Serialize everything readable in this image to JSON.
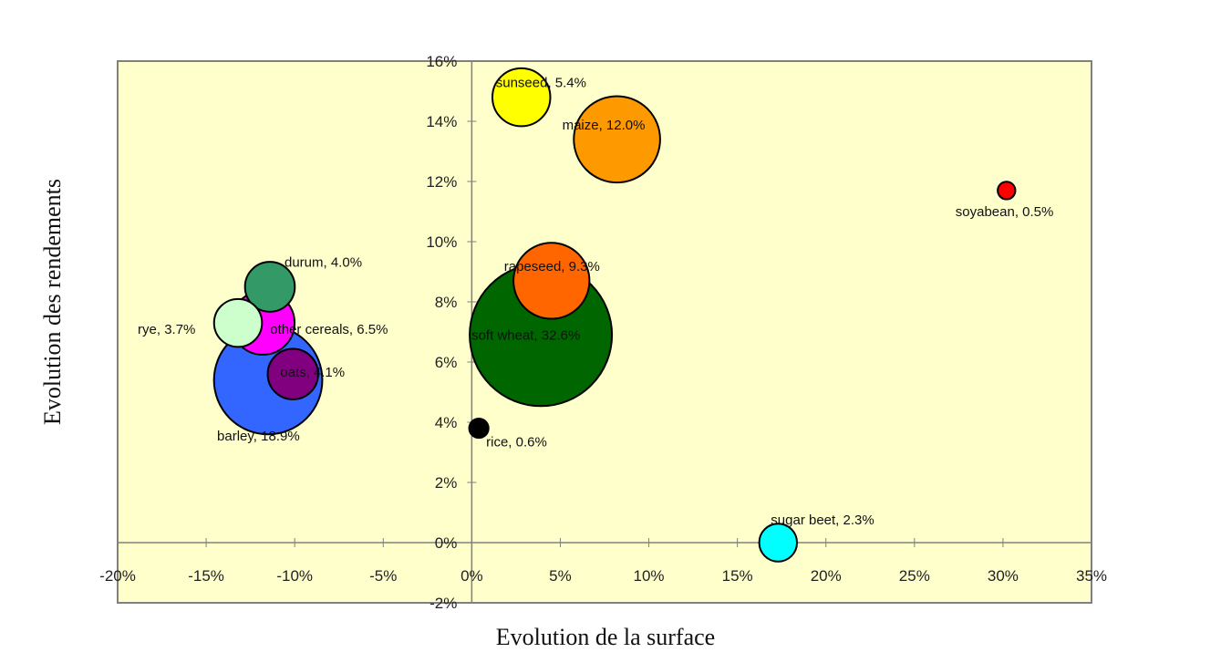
{
  "chart_data": {
    "type": "bubble",
    "xlabel": "Evolution de la surface",
    "ylabel": "Evolution des rendements",
    "xlim": [
      -20,
      35
    ],
    "ylim": [
      -2,
      16
    ],
    "x_ticks": [
      -20,
      -15,
      -10,
      -5,
      0,
      5,
      10,
      15,
      20,
      25,
      30,
      35
    ],
    "y_ticks": [
      -2,
      0,
      2,
      4,
      6,
      8,
      10,
      12,
      14,
      16
    ],
    "plot_background": "#FFFFCC",
    "grid": false,
    "series": [
      {
        "name": "soft wheat",
        "share": "32.6%",
        "label": "soft wheat, 32.6%",
        "x": 3.9,
        "y": 6.9,
        "color": "#006600"
      },
      {
        "name": "barley",
        "share": "18.9%",
        "label": "barley, 18.9%",
        "x": -11.5,
        "y": 5.4,
        "color": "#3366FF"
      },
      {
        "name": "maize",
        "share": "12.0%",
        "label": "maize, 12.0%",
        "x": 8.2,
        "y": 13.4,
        "color": "#FF9900"
      },
      {
        "name": "rapeseed",
        "share": "9.3%",
        "label": "rapeseed, 9.3%",
        "x": 4.5,
        "y": 8.7,
        "color": "#FF6600"
      },
      {
        "name": "other cereals",
        "share": "6.5%",
        "label": "other cereals, 6.5%",
        "x": -11.8,
        "y": 7.3,
        "color": "#FF00FF"
      },
      {
        "name": "sunseed",
        "share": "5.4%",
        "label": "sunseed, 5.4%",
        "x": 2.8,
        "y": 14.8,
        "color": "#FFFF00"
      },
      {
        "name": "oats",
        "share": "4.1%",
        "label": "oats, 4.1%",
        "x": -10.1,
        "y": 5.6,
        "color": "#800080"
      },
      {
        "name": "durum",
        "share": "4.0%",
        "label": "durum, 4.0%",
        "x": -11.4,
        "y": 8.5,
        "color": "#339966"
      },
      {
        "name": "rye",
        "share": "3.7%",
        "label": "rye, 3.7%",
        "x": -13.2,
        "y": 7.3,
        "color": "#CCFFCC"
      },
      {
        "name": "sugar beet",
        "share": "2.3%",
        "label": "sugar beet, 2.3%",
        "x": 17.3,
        "y": 0.0,
        "color": "#00FFFF"
      },
      {
        "name": "rice",
        "share": "0.6%",
        "label": "rice, 0.6%",
        "x": 0.4,
        "y": 3.8,
        "color": "#000000"
      },
      {
        "name": "soyabean",
        "share": "0.5%",
        "label": "soyabean, 0.5%",
        "x": 30.2,
        "y": 11.7,
        "color": "#FF0000"
      }
    ]
  }
}
